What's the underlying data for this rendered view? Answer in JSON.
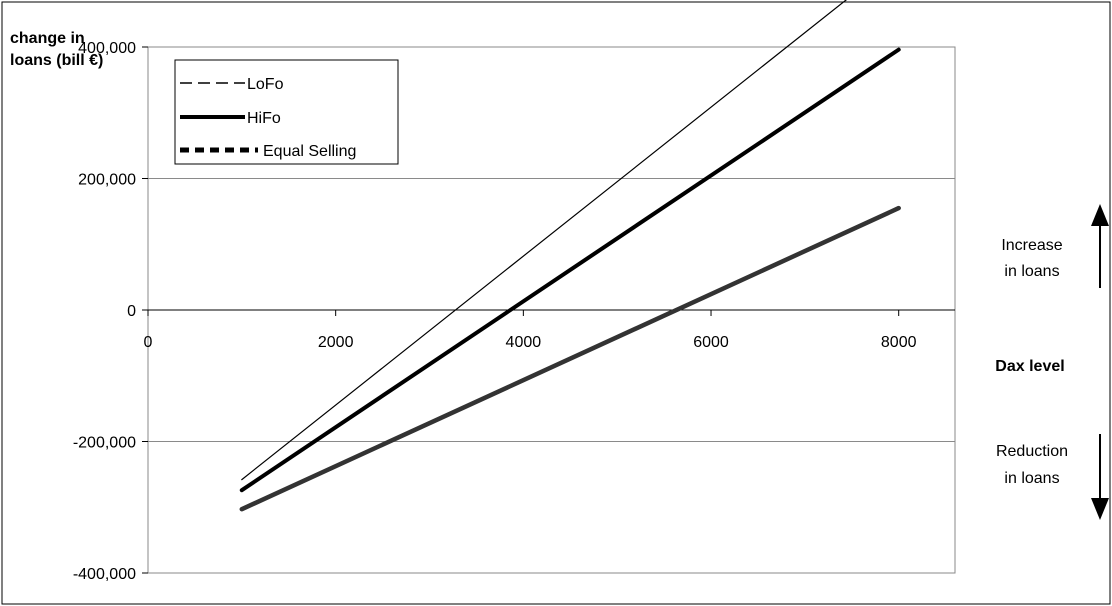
{
  "chart_data": {
    "type": "line",
    "ylabel_line1": "change in",
    "ylabel_line2": "loans (bill €)",
    "xlabel": "Dax level",
    "xlim": [
      0,
      8600
    ],
    "ylim": [
      -400000,
      400000
    ],
    "x_ticks": [
      {
        "value": 0,
        "label": "0"
      },
      {
        "value": 2000,
        "label": "2000"
      },
      {
        "value": 4000,
        "label": "4000"
      },
      {
        "value": 6000,
        "label": "6000"
      },
      {
        "value": 8000,
        "label": "8000"
      }
    ],
    "y_ticks": [
      {
        "value": 400000,
        "label": "400,000"
      },
      {
        "value": 200000,
        "label": "200,000"
      },
      {
        "value": 0,
        "label": "0"
      },
      {
        "value": -200000,
        "label": "-200,000"
      },
      {
        "value": -400000,
        "label": "-400,000"
      }
    ],
    "grid": true,
    "legend": [
      {
        "label": "LoFo",
        "style": "dashed"
      },
      {
        "label": "HiFo",
        "style": "thick"
      },
      {
        "label": "Equal Selling",
        "style": "thick-dashed"
      }
    ],
    "series": [
      {
        "name": "LoFo",
        "x": [
          1000,
          8000
        ],
        "y": [
          -258000,
          535000
        ]
      },
      {
        "name": "HiFo",
        "x": [
          1000,
          8000
        ],
        "y": [
          -274000,
          396000
        ]
      },
      {
        "name": "Equal Selling",
        "x": [
          1000,
          8000
        ],
        "y": [
          -303000,
          155000
        ]
      }
    ],
    "annotations": {
      "increase": [
        "Increase",
        "in loans"
      ],
      "reduction": [
        "Reduction",
        "in loans"
      ]
    }
  }
}
